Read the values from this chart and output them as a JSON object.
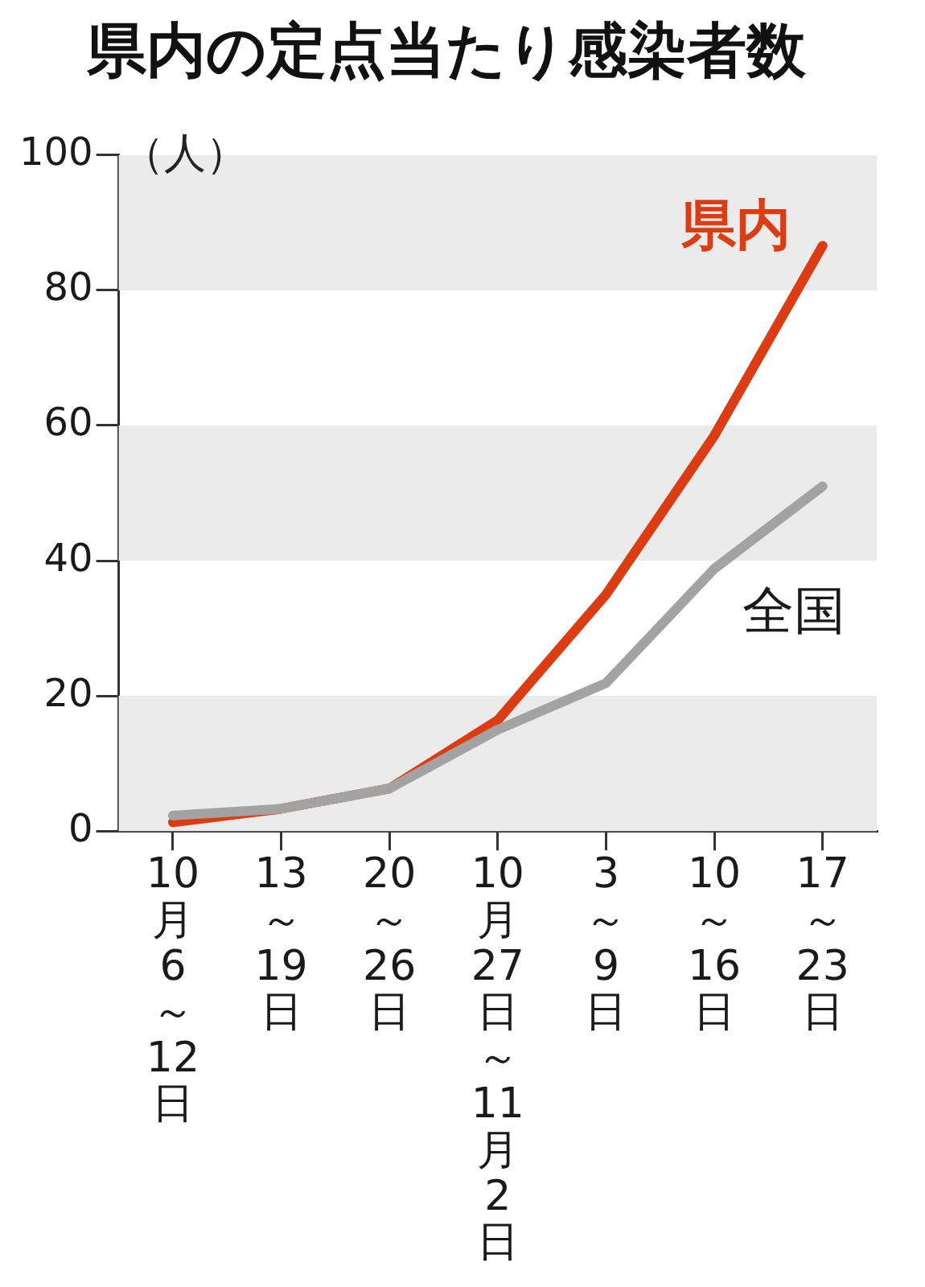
{
  "chart_data": {
    "type": "line",
    "title": "県内の定点当たり感染者数",
    "ylabel": "（人）",
    "categories": [
      "10月6～12日",
      "13～19日",
      "20～26日",
      "10月27日～11月2日",
      "3～9日",
      "10～16日",
      "17～23日"
    ],
    "series": [
      {
        "name": "全国",
        "color": "#a3a3a3",
        "values": [
          2.3,
          3.3,
          6.3,
          15,
          21.9,
          38.8,
          51
        ]
      },
      {
        "name": "県内",
        "color": "#dd3c12",
        "values": [
          1.3,
          3.3,
          6.3,
          16.4,
          35,
          58.5,
          86.6
        ]
      }
    ],
    "ylim": [
      0,
      100
    ],
    "yticks": [
      0,
      20,
      40,
      60,
      80,
      100
    ],
    "bands": [
      {
        "axis": "y",
        "from": 0,
        "to": 20,
        "color": "#ebebeb"
      },
      {
        "axis": "y",
        "from": 40,
        "to": 60,
        "color": "#ebebeb"
      },
      {
        "axis": "y",
        "from": 80,
        "to": 100,
        "color": "#ebebeb"
      }
    ],
    "legend": false,
    "marker": "none",
    "line_style": "solid"
  }
}
